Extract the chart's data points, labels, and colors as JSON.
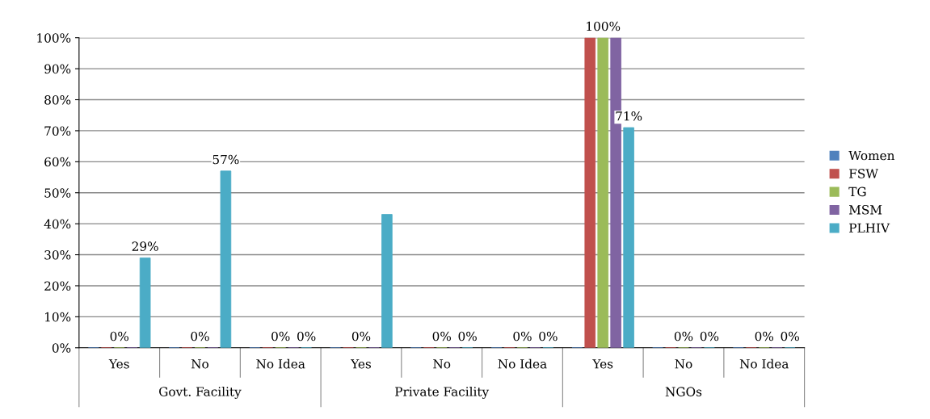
{
  "chart_data": {
    "type": "bar",
    "categories": [
      "Yes",
      "No",
      "No Idea",
      "Yes",
      "No",
      "No Idea",
      "Yes",
      "No",
      "No Idea"
    ],
    "series": [
      {
        "name": "Women",
        "color": "#4f81bd",
        "values": [
          0,
          0,
          0,
          0,
          0,
          0,
          0,
          0,
          0
        ]
      },
      {
        "name": "FSW",
        "color": "#c0504d",
        "values": [
          0,
          0,
          0,
          0,
          0,
          0,
          100,
          0,
          0
        ]
      },
      {
        "name": "TG",
        "color": "#9bbb59",
        "values": [
          0,
          0,
          0,
          0,
          0,
          0,
          100,
          0,
          0
        ],
        "value_labels": [
          "0%",
          "0%",
          "0%",
          "0%",
          "0%",
          "0%",
          "100%",
          "0%",
          "0%"
        ]
      },
      {
        "name": "MSM",
        "color": "#8064a2",
        "values": [
          0,
          0,
          0,
          0,
          0,
          0,
          100,
          0,
          0
        ]
      },
      {
        "name": "PLHIV",
        "color": "#4bacc6",
        "values": [
          29,
          57,
          0,
          43,
          0,
          0,
          71,
          0,
          0
        ],
        "value_labels": [
          "29%",
          "57%",
          "0%",
          null,
          "0%",
          "0%",
          "71%",
          "0%",
          "0%"
        ]
      }
    ],
    "annotations": [
      "Govt. Facility",
      "Private Facility",
      "NGOs"
    ],
    "ylim": [
      0,
      100
    ],
    "yticks": [
      {
        "value": 0,
        "label": "0%"
      },
      {
        "value": 10,
        "label": "10%"
      },
      {
        "value": 20,
        "label": "20%"
      },
      {
        "value": 30,
        "label": "30%"
      },
      {
        "value": 40,
        "label": "40%"
      },
      {
        "value": 50,
        "label": "50%"
      },
      {
        "value": 60,
        "label": "60%"
      },
      {
        "value": 70,
        "label": "70%"
      },
      {
        "value": 80,
        "label": "80%"
      },
      {
        "value": 90,
        "label": "90%"
      },
      {
        "value": 100,
        "label": "100%"
      }
    ],
    "grid": "y",
    "legend": "right"
  }
}
